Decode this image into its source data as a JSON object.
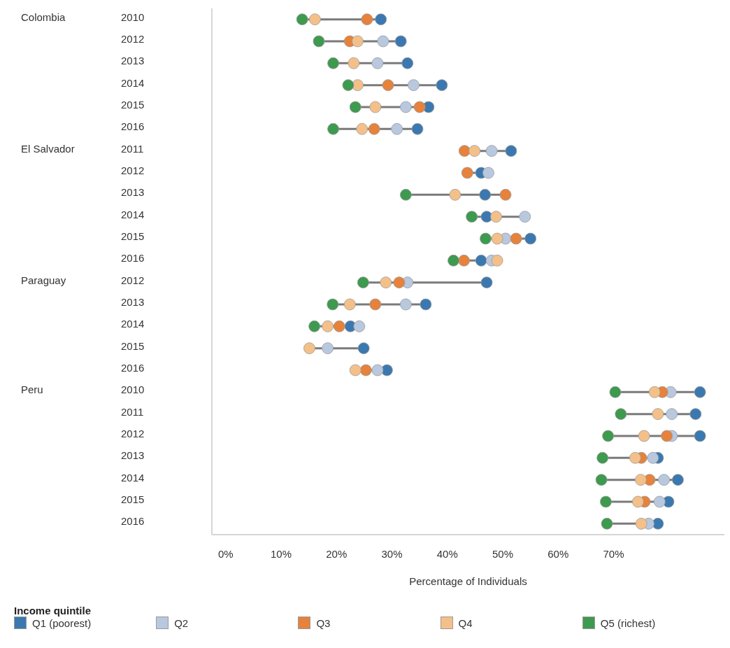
{
  "chart_data": {
    "type": "scatter",
    "orientation": "horizontal",
    "xlabel": "Percentage of Individuals",
    "legend_title": "Income quintile",
    "legend": "bottom",
    "marker": "circle",
    "annotations": [
      "Colombia",
      "El Salvador",
      "Paraguay",
      "Peru"
    ],
    "categories": [
      "2010",
      "2012",
      "2013",
      "2014",
      "2015",
      "2016",
      "2011",
      "2012",
      "2013",
      "2014",
      "2015",
      "2016",
      "2012",
      "2013",
      "2014",
      "2015",
      "2016",
      "2010",
      "2011",
      "2012",
      "2013",
      "2014",
      "2015",
      "2016"
    ],
    "xlim": [
      -2.5,
      90
    ],
    "xticks": [
      {
        "value": 0,
        "label": "0%"
      },
      {
        "value": 10,
        "label": "10%"
      },
      {
        "value": 20,
        "label": "20%"
      },
      {
        "value": 30,
        "label": "30%"
      },
      {
        "value": 40,
        "label": "40%"
      },
      {
        "value": 50,
        "label": "50%"
      },
      {
        "value": 60,
        "label": "60%"
      },
      {
        "value": 70,
        "label": "70%"
      }
    ],
    "series": [
      {
        "name": "Q1 (poorest)",
        "color": "#3b78b0",
        "values": [
          28.0,
          31.6,
          32.8,
          39.0,
          36.6,
          34.6,
          51.5,
          46.1,
          46.8,
          47.1,
          55.0,
          46.1,
          47.1,
          36.1,
          22.5,
          24.9,
          29.1,
          85.6,
          84.8,
          85.6,
          78.0,
          81.6,
          79.9,
          78.0
        ]
      },
      {
        "name": "Q2",
        "color": "#b8c8df",
        "values": [
          null,
          28.4,
          27.4,
          33.9,
          32.5,
          30.9,
          48.0,
          47.4,
          null,
          54.0,
          50.5,
          48.0,
          32.8,
          32.5,
          24.1,
          18.4,
          27.4,
          80.3,
          80.5,
          80.5,
          77.1,
          79.1,
          78.3,
          76.3
        ]
      },
      {
        "name": "Q3",
        "color": "#e6823b",
        "values": [
          25.5,
          22.4,
          null,
          29.3,
          35.0,
          26.8,
          43.1,
          43.6,
          50.5,
          null,
          52.4,
          43.0,
          31.3,
          27.0,
          20.5,
          null,
          25.3,
          78.8,
          null,
          79.6,
          75.0,
          76.5,
          75.6,
          null
        ]
      },
      {
        "name": "Q4",
        "color": "#f4c089",
        "values": [
          16.1,
          23.8,
          23.1,
          23.8,
          27.0,
          24.6,
          44.9,
          null,
          41.4,
          48.8,
          49.0,
          49.0,
          28.9,
          22.4,
          18.4,
          15.1,
          23.4,
          77.4,
          78.0,
          75.5,
          73.9,
          74.9,
          74.4,
          75.0
        ]
      },
      {
        "name": "Q5 (richest)",
        "color": "#3d9a4e",
        "values": [
          13.8,
          16.8,
          19.4,
          22.1,
          23.4,
          19.4,
          null,
          null,
          32.5,
          44.4,
          46.9,
          41.1,
          24.8,
          19.3,
          16.0,
          null,
          null,
          70.3,
          71.3,
          69.0,
          68.0,
          67.8,
          68.6,
          68.8
        ]
      }
    ]
  }
}
